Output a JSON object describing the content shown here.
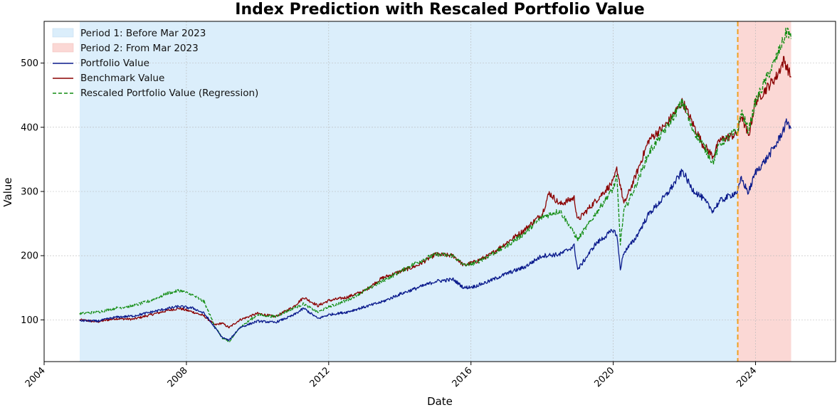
{
  "chart_data": {
    "type": "line",
    "title": "Index Prediction with Rescaled Portfolio Value",
    "xlabel": "Date",
    "ylabel": "Value",
    "xlim": [
      2004.0,
      2026.25
    ],
    "ylim": [
      35,
      565
    ],
    "xticks": [
      2004,
      2008,
      2012,
      2016,
      2020,
      2024
    ],
    "yticks": [
      100,
      200,
      300,
      400,
      500
    ],
    "grid": true,
    "legend_position": "top-left",
    "colors": {
      "period1": "#dbeefb",
      "period2": "#fbd8d5",
      "portfolio": "#0a1a8c",
      "benchmark": "#8b0000",
      "rescaled": "#118c11",
      "split_line": "#f0a020"
    },
    "periods": [
      {
        "name": "Period 1: Before Mar 2023",
        "start": 2005.0,
        "end": 2023.5
      },
      {
        "name": "Period 2: From Mar 2023",
        "start": 2023.5,
        "end": 2025.0
      }
    ],
    "split_date": 2023.5,
    "series": [
      {
        "name": "Portfolio Value",
        "style": "solid",
        "x": [
          2005.0,
          2005.5,
          2006.0,
          2006.5,
          2007.0,
          2007.5,
          2007.8,
          2008.2,
          2008.5,
          2008.8,
          2009.0,
          2009.2,
          2009.5,
          2010.0,
          2010.5,
          2011.0,
          2011.3,
          2011.7,
          2012.0,
          2012.5,
          2013.0,
          2013.5,
          2014.0,
          2014.5,
          2015.0,
          2015.5,
          2015.8,
          2016.1,
          2016.5,
          2017.0,
          2017.5,
          2018.0,
          2018.5,
          2018.9,
          2019.0,
          2019.5,
          2020.0,
          2020.1,
          2020.2,
          2020.3,
          2020.6,
          2021.0,
          2021.5,
          2021.95,
          2022.2,
          2022.5,
          2022.8,
          2023.0,
          2023.5,
          2023.6,
          2023.8,
          2024.0,
          2024.3,
          2024.6,
          2024.9,
          2025.0
        ],
        "y": [
          99,
          98,
          104,
          106,
          112,
          118,
          121,
          118,
          110,
          88,
          73,
          68,
          88,
          98,
          96,
          107,
          118,
          102,
          108,
          112,
          120,
          128,
          140,
          150,
          160,
          163,
          150,
          152,
          160,
          172,
          182,
          200,
          202,
          215,
          178,
          218,
          240,
          232,
          180,
          205,
          225,
          265,
          295,
          332,
          305,
          290,
          270,
          285,
          300,
          320,
          298,
          330,
          350,
          375,
          410,
          398
        ]
      },
      {
        "name": "Benchmark Value",
        "style": "solid",
        "x": [
          2005.0,
          2005.5,
          2006.0,
          2006.5,
          2007.0,
          2007.5,
          2007.8,
          2008.2,
          2008.5,
          2008.8,
          2009.0,
          2009.2,
          2009.5,
          2010.0,
          2010.5,
          2011.0,
          2011.3,
          2011.7,
          2012.0,
          2012.5,
          2013.0,
          2013.5,
          2014.0,
          2014.5,
          2015.0,
          2015.5,
          2015.8,
          2016.1,
          2016.5,
          2017.0,
          2017.5,
          2018.0,
          2018.2,
          2018.5,
          2018.9,
          2019.0,
          2019.5,
          2020.0,
          2020.1,
          2020.2,
          2020.3,
          2020.6,
          2021.0,
          2021.5,
          2021.95,
          2022.2,
          2022.5,
          2022.8,
          2023.0,
          2023.5,
          2023.6,
          2023.8,
          2024.0,
          2024.3,
          2024.6,
          2024.8,
          2025.0
        ],
        "y": [
          100,
          97,
          102,
          101,
          108,
          115,
          118,
          112,
          106,
          92,
          95,
          88,
          100,
          110,
          105,
          120,
          135,
          122,
          130,
          135,
          145,
          165,
          175,
          185,
          202,
          200,
          185,
          190,
          200,
          220,
          240,
          265,
          298,
          280,
          290,
          255,
          285,
          315,
          335,
          310,
          280,
          320,
          380,
          405,
          440,
          410,
          375,
          355,
          380,
          390,
          420,
          385,
          440,
          460,
          480,
          505,
          478
        ]
      },
      {
        "name": "Rescaled Portfolio Value (Regression)",
        "style": "dashed",
        "x": [
          2005.0,
          2005.5,
          2006.0,
          2006.5,
          2007.0,
          2007.5,
          2007.8,
          2008.2,
          2008.5,
          2008.8,
          2009.0,
          2009.2,
          2009.5,
          2010.0,
          2010.5,
          2011.0,
          2011.3,
          2011.7,
          2012.0,
          2012.5,
          2013.0,
          2013.5,
          2014.0,
          2014.5,
          2015.0,
          2015.5,
          2015.8,
          2016.1,
          2016.5,
          2017.0,
          2017.5,
          2018.0,
          2018.5,
          2018.9,
          2019.0,
          2019.5,
          2020.0,
          2020.1,
          2020.2,
          2020.3,
          2020.6,
          2021.0,
          2021.5,
          2021.95,
          2022.2,
          2022.5,
          2022.8,
          2023.0,
          2023.5,
          2023.6,
          2023.8,
          2024.0,
          2024.3,
          2024.6,
          2024.9,
          2025.0
        ],
        "y": [
          110,
          112,
          118,
          122,
          130,
          142,
          146,
          138,
          128,
          90,
          72,
          65,
          88,
          108,
          105,
          118,
          125,
          112,
          120,
          130,
          145,
          160,
          175,
          190,
          202,
          200,
          185,
          188,
          200,
          215,
          235,
          260,
          270,
          235,
          225,
          265,
          305,
          322,
          220,
          270,
          305,
          360,
          400,
          440,
          400,
          375,
          345,
          375,
          395,
          425,
          395,
          440,
          475,
          510,
          552,
          538
        ]
      }
    ]
  }
}
